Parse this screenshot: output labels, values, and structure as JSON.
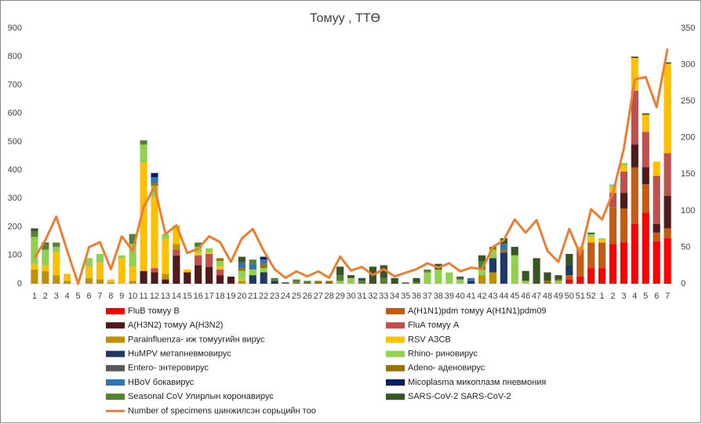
{
  "chart_data": {
    "type": "bar",
    "title": "Томуу , ТТӨ",
    "categories": [
      "1",
      "2",
      "3",
      "4",
      "5",
      "6",
      "7",
      "8",
      "9",
      "10",
      "11",
      "12",
      "13",
      "14",
      "15",
      "16",
      "17",
      "18",
      "19",
      "20",
      "21",
      "22",
      "23",
      "24",
      "25",
      "26",
      "27",
      "28",
      "29",
      "30",
      "31",
      "32",
      "33",
      "34",
      "35",
      "36",
      "37",
      "38",
      "39",
      "40",
      "41",
      "42",
      "43",
      "44",
      "45",
      "46",
      "47",
      "48",
      "49",
      "50",
      "51",
      "52",
      "1",
      "2",
      "3",
      "4",
      "5",
      "6",
      "7"
    ],
    "ylim": [
      0,
      900
    ],
    "yticks": [
      0,
      100,
      200,
      300,
      400,
      500,
      600,
      700,
      800,
      900
    ],
    "y2lim": [
      0,
      350
    ],
    "y2ticks": [
      0,
      50,
      100,
      150,
      200,
      250,
      300,
      350
    ],
    "series": [
      {
        "name": "FluB томуу B",
        "color": "#ff0000",
        "values": [
          0,
          0,
          0,
          0,
          0,
          0,
          0,
          0,
          0,
          0,
          0,
          0,
          0,
          0,
          0,
          0,
          0,
          0,
          0,
          0,
          0,
          0,
          0,
          0,
          0,
          0,
          0,
          0,
          0,
          0,
          0,
          0,
          0,
          0,
          0,
          0,
          0,
          0,
          0,
          0,
          0,
          0,
          0,
          0,
          0,
          0,
          0,
          0,
          0,
          15,
          25,
          55,
          55,
          140,
          145,
          210,
          250,
          150,
          160
        ]
      },
      {
        "name": "A(H1N1)pdm томуу A(H1N1)pdm09",
        "color": "#c55a11",
        "values": [
          0,
          0,
          0,
          0,
          0,
          0,
          0,
          0,
          0,
          0,
          0,
          0,
          0,
          0,
          0,
          0,
          0,
          0,
          0,
          0,
          0,
          0,
          0,
          0,
          0,
          0,
          0,
          0,
          0,
          0,
          0,
          0,
          0,
          0,
          0,
          0,
          0,
          0,
          0,
          0,
          0,
          0,
          0,
          0,
          0,
          0,
          0,
          0,
          0,
          15,
          95,
          90,
          90,
          130,
          120,
          200,
          100,
          30,
          35
        ]
      },
      {
        "name": "A(H3N2) томуу A(H3N2)",
        "color": "#4e1a1a",
        "values": [
          0,
          0,
          0,
          0,
          0,
          0,
          0,
          0,
          0,
          0,
          45,
          40,
          15,
          100,
          40,
          65,
          60,
          30,
          25,
          0,
          0,
          0,
          0,
          0,
          0,
          0,
          0,
          0,
          0,
          0,
          0,
          0,
          0,
          0,
          0,
          0,
          0,
          0,
          0,
          0,
          0,
          0,
          0,
          0,
          0,
          0,
          0,
          0,
          0,
          0,
          0,
          0,
          0,
          0,
          55,
          80,
          60,
          30,
          115
        ]
      },
      {
        "name": "FluA томуу A",
        "color": "#c0504d",
        "values": [
          0,
          0,
          0,
          0,
          0,
          0,
          0,
          0,
          0,
          0,
          0,
          15,
          0,
          20,
          0,
          35,
          45,
          20,
          0,
          0,
          0,
          0,
          0,
          0,
          0,
          0,
          0,
          0,
          0,
          0,
          0,
          0,
          0,
          0,
          0,
          0,
          0,
          0,
          0,
          0,
          0,
          0,
          0,
          0,
          0,
          0,
          0,
          0,
          0,
          0,
          0,
          0,
          0,
          50,
          75,
          190,
          125,
          170,
          150
        ]
      },
      {
        "name": "Parainfluenza- иж томуугийн вирус",
        "color": "#bf9000",
        "values": [
          50,
          45,
          30,
          10,
          0,
          20,
          15,
          5,
          0,
          10,
          0,
          0,
          20,
          20,
          0,
          0,
          0,
          0,
          0,
          10,
          0,
          0,
          0,
          0,
          0,
          0,
          0,
          0,
          0,
          0,
          0,
          0,
          0,
          0,
          0,
          0,
          0,
          0,
          0,
          0,
          0,
          30,
          40,
          0,
          0,
          0,
          0,
          0,
          0,
          0,
          0,
          0,
          0,
          0,
          0,
          0,
          0,
          0,
          0
        ]
      },
      {
        "name": "RSV АЗСВ",
        "color": "#ffc000",
        "values": [
          20,
          20,
          80,
          25,
          0,
          40,
          60,
          10,
          90,
          50,
          380,
          250,
          120,
          60,
          10,
          10,
          5,
          10,
          0,
          5,
          0,
          0,
          0,
          0,
          0,
          0,
          0,
          0,
          0,
          0,
          0,
          0,
          0,
          0,
          0,
          0,
          0,
          0,
          0,
          0,
          0,
          0,
          0,
          0,
          0,
          0,
          0,
          0,
          0,
          0,
          10,
          20,
          10,
          20,
          20,
          115,
          60,
          50,
          315
        ]
      },
      {
        "name": "HuMPV метапневмовирус",
        "color": "#1f3864",
        "values": [
          0,
          0,
          0,
          0,
          0,
          0,
          0,
          0,
          0,
          0,
          0,
          0,
          0,
          0,
          0,
          0,
          0,
          0,
          0,
          0,
          30,
          40,
          10,
          0,
          0,
          0,
          0,
          0,
          0,
          0,
          0,
          0,
          0,
          0,
          0,
          0,
          0,
          0,
          0,
          0,
          10,
          0,
          50,
          110,
          0,
          0,
          0,
          0,
          0,
          35,
          0,
          0,
          0,
          0,
          0,
          0,
          0,
          0,
          0
        ]
      },
      {
        "name": "Rhino- риновирус",
        "color": "#92d050",
        "values": [
          95,
          55,
          20,
          0,
          0,
          30,
          30,
          0,
          10,
          80,
          65,
          40,
          20,
          5,
          0,
          20,
          15,
          20,
          0,
          30,
          20,
          15,
          0,
          0,
          0,
          0,
          0,
          0,
          10,
          20,
          0,
          0,
          0,
          0,
          0,
          0,
          40,
          50,
          40,
          15,
          0,
          20,
          30,
          0,
          100,
          10,
          0,
          0,
          10,
          0,
          0,
          10,
          5,
          10,
          10,
          0,
          0,
          0,
          0
        ]
      },
      {
        "name": "Entero- энтеровирус",
        "color": "#595959",
        "values": [
          0,
          0,
          0,
          0,
          0,
          0,
          0,
          0,
          0,
          0,
          0,
          0,
          0,
          0,
          0,
          0,
          0,
          0,
          0,
          0,
          0,
          0,
          0,
          5,
          0,
          0,
          0,
          0,
          0,
          0,
          0,
          0,
          0,
          0,
          0,
          0,
          0,
          0,
          0,
          5,
          0,
          0,
          0,
          0,
          0,
          0,
          0,
          0,
          0,
          0,
          0,
          0,
          0,
          0,
          0,
          0,
          0,
          0,
          0
        ]
      },
      {
        "name": "Adeno- аденовирус",
        "color": "#997300",
        "values": [
          0,
          0,
          0,
          0,
          0,
          0,
          0,
          0,
          0,
          0,
          0,
          10,
          0,
          0,
          0,
          0,
          0,
          10,
          0,
          10,
          0,
          15,
          0,
          0,
          5,
          0,
          10,
          10,
          0,
          0,
          0,
          0,
          0,
          0,
          0,
          0,
          0,
          0,
          0,
          0,
          0,
          0,
          10,
          10,
          0,
          0,
          0,
          10,
          5,
          0,
          0,
          0,
          0,
          0,
          0,
          0,
          0,
          0,
          0
        ]
      },
      {
        "name": "HBoV бокавирус",
        "color": "#2e75b6",
        "values": [
          0,
          0,
          0,
          0,
          0,
          0,
          0,
          0,
          0,
          0,
          0,
          20,
          0,
          0,
          0,
          0,
          0,
          0,
          0,
          20,
          20,
          15,
          0,
          0,
          0,
          0,
          0,
          0,
          0,
          0,
          0,
          0,
          0,
          0,
          0,
          0,
          0,
          0,
          0,
          0,
          10,
          0,
          0,
          20,
          0,
          0,
          0,
          0,
          0,
          0,
          0,
          0,
          0,
          0,
          0,
          0,
          0,
          0,
          0
        ]
      },
      {
        "name": "Micoplasma микоплазм пневмония",
        "color": "#002060",
        "values": [
          0,
          0,
          0,
          0,
          0,
          0,
          0,
          0,
          0,
          0,
          0,
          15,
          0,
          0,
          0,
          0,
          0,
          0,
          0,
          0,
          0,
          10,
          0,
          0,
          0,
          0,
          0,
          0,
          0,
          0,
          0,
          0,
          0,
          0,
          0,
          0,
          0,
          0,
          0,
          0,
          0,
          0,
          0,
          0,
          0,
          0,
          0,
          0,
          0,
          0,
          0,
          0,
          0,
          0,
          0,
          0,
          0,
          0,
          0
        ]
      },
      {
        "name": "Seasonal CoV Улирлын коронавирус",
        "color": "#548235",
        "values": [
          20,
          20,
          15,
          0,
          0,
          0,
          0,
          0,
          0,
          35,
          15,
          0,
          0,
          0,
          0,
          15,
          0,
          0,
          0,
          0,
          15,
          0,
          10,
          0,
          10,
          10,
          0,
          0,
          20,
          0,
          10,
          0,
          20,
          0,
          5,
          5,
          10,
          0,
          0,
          0,
          0,
          30,
          0,
          0,
          0,
          0,
          0,
          0,
          0,
          0,
          0,
          0,
          0,
          0,
          0,
          0,
          0,
          0,
          0
        ]
      },
      {
        "name": "SARS-CoV-2 SARS-CoV-2",
        "color": "#375623",
        "values": [
          10,
          5,
          0,
          0,
          0,
          0,
          0,
          0,
          0,
          0,
          0,
          0,
          0,
          0,
          0,
          0,
          0,
          0,
          0,
          20,
          0,
          0,
          0,
          0,
          0,
          0,
          0,
          0,
          30,
          10,
          10,
          60,
          45,
          20,
          0,
          15,
          0,
          20,
          0,
          5,
          0,
          20,
          0,
          20,
          30,
          35,
          90,
          30,
          15,
          40,
          0,
          5,
          0,
          0,
          0,
          5,
          5,
          0,
          5
        ]
      },
      {
        "name": "Number of specimens шинжилсэн сорьцийн тоо",
        "color": "#ed7d31",
        "axis": "y2",
        "values": [
          35,
          60,
          92,
          45,
          0,
          50,
          57,
          20,
          65,
          45,
          105,
          133,
          68,
          80,
          42,
          48,
          65,
          57,
          30,
          62,
          75,
          45,
          20,
          8,
          17,
          10,
          17,
          8,
          37,
          18,
          23,
          12,
          20,
          10,
          15,
          20,
          28,
          22,
          28,
          17,
          22,
          20,
          50,
          60,
          88,
          70,
          87,
          45,
          30,
          75,
          40,
          102,
          88,
          125,
          185,
          280,
          283,
          242,
          322
        ]
      }
    ]
  }
}
